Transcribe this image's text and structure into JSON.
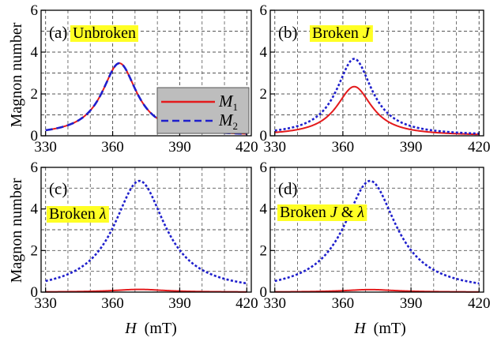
{
  "figure": {
    "ylabel": "Magnon number",
    "xlabel_symbol": "H",
    "xlabel_unit": "(mT)",
    "colors": {
      "m1": "#e41a1c",
      "m2": "#1f1fcc",
      "tag_background": "#ffff24",
      "grid": "#555555",
      "legend_background": "#bdbdbd"
    },
    "legend": {
      "placement": "center-right of panel (a)",
      "entries": [
        {
          "symbol": "M",
          "subscript": "1",
          "style": "solid red"
        },
        {
          "symbol": "M",
          "subscript": "2",
          "style": "dashed blue"
        }
      ]
    }
  },
  "chart_data": [
    {
      "type": "line",
      "panel": "(a)",
      "tag": "Unbroken",
      "xlabel": "",
      "ylabel": "Magnon number",
      "xlim": [
        328,
        422
      ],
      "ylim": [
        0,
        6
      ],
      "xticks": [
        330,
        360,
        390,
        420
      ],
      "yticks": [
        0,
        2,
        4,
        6
      ],
      "grid": true,
      "series": [
        {
          "name": "M1",
          "curve": {
            "amplitude": 3.47,
            "center": 363,
            "halfwidth": 9.5
          }
        },
        {
          "name": "M2",
          "curve": {
            "amplitude": 3.47,
            "center": 363,
            "halfwidth": 9.5
          }
        }
      ]
    },
    {
      "type": "line",
      "panel": "(b)",
      "tag": "Broken J",
      "xlabel": "",
      "ylabel": "",
      "xlim": [
        328,
        422
      ],
      "ylim": [
        0,
        6
      ],
      "xticks": [
        330,
        360,
        390,
        420
      ],
      "yticks": [
        0,
        2,
        4,
        6
      ],
      "grid": true,
      "series": [
        {
          "name": "M1",
          "curve": {
            "amplitude": 2.35,
            "center": 365,
            "halfwidth": 9.5
          }
        },
        {
          "name": "M2",
          "curve": {
            "amplitude": 3.68,
            "center": 365,
            "halfwidth": 9.5
          }
        }
      ]
    },
    {
      "type": "line",
      "panel": "(c)",
      "tag": "Broken λ",
      "xlabel": "H (mT)",
      "ylabel": "Magnon number",
      "xlim": [
        328,
        422
      ],
      "ylim": [
        0,
        6
      ],
      "xticks": [
        330,
        360,
        390,
        420
      ],
      "yticks": [
        0,
        2,
        4,
        6
      ],
      "grid": true,
      "series": [
        {
          "name": "M1",
          "curve": {
            "amplitude": 0.13,
            "center": 372,
            "halfwidth": 14
          }
        },
        {
          "name": "M2",
          "curve": {
            "amplitude": 5.35,
            "center": 372,
            "halfwidth": 14
          }
        }
      ]
    },
    {
      "type": "line",
      "panel": "(d)",
      "tag": "Broken J & λ",
      "xlabel": "H (mT)",
      "ylabel": "",
      "xlim": [
        328,
        422
      ],
      "ylim": [
        0,
        6
      ],
      "xticks": [
        330,
        360,
        390,
        420
      ],
      "yticks": [
        0,
        2,
        4,
        6
      ],
      "grid": true,
      "series": [
        {
          "name": "M1",
          "curve": {
            "amplitude": 0.12,
            "center": 372,
            "halfwidth": 14
          }
        },
        {
          "name": "M2",
          "curve": {
            "amplitude": 5.35,
            "center": 372,
            "halfwidth": 14
          }
        }
      ]
    }
  ]
}
